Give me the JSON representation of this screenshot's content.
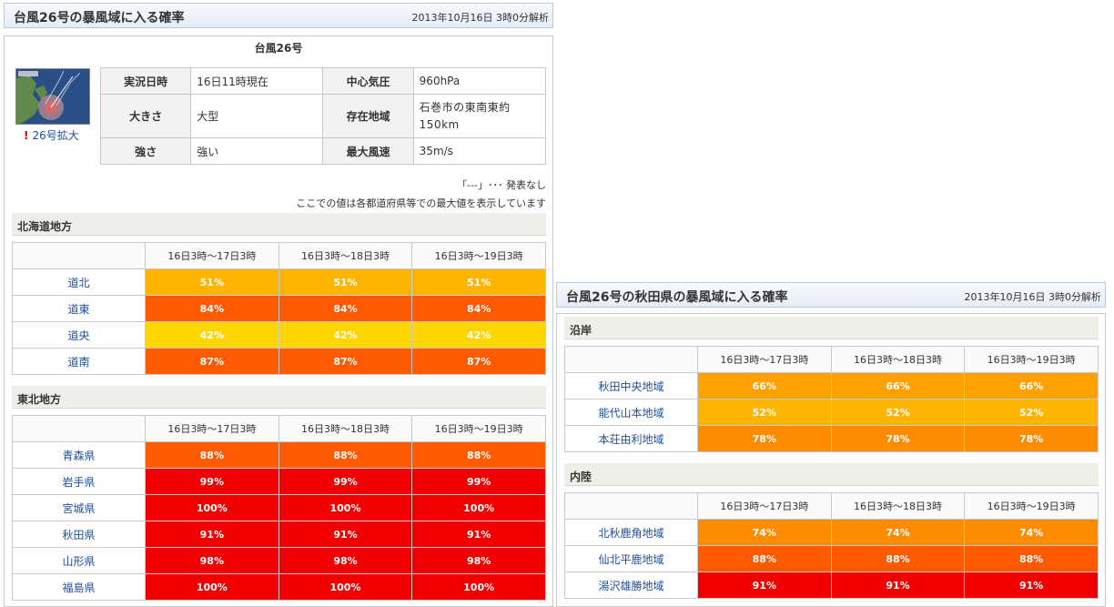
{
  "left_panel": {
    "title": "台風26号の暴風域に入る確率",
    "timestamp": "2013年10月16日 3時0分解析",
    "storm_name": "台風26号",
    "thumbnail_link": "26号拡大",
    "info": {
      "row1": {
        "l1": "実況日時",
        "v1": "16日11時現在",
        "l2": "中心気圧",
        "v2": "960hPa"
      },
      "row2": {
        "l1": "大きさ",
        "v1": "大型",
        "l2": "存在地域",
        "v2": "石巻市の東南東約150km"
      },
      "row3": {
        "l1": "強さ",
        "v1": "強い",
        "l2": "最大風速",
        "v2": "35m/s"
      }
    },
    "note1": "「---」･･･ 発表なし",
    "note2": "ここでの値は各都道府県等での最大値を表示しています",
    "periods": [
      "16日3時～17日3時",
      "16日3時～18日3時",
      "16日3時～19日3時"
    ],
    "hokkaido": {
      "title": "北海道地方",
      "rows": [
        {
          "name": "道北",
          "values": [
            "51%",
            "51%",
            "51%"
          ]
        },
        {
          "name": "道東",
          "values": [
            "84%",
            "84%",
            "84%"
          ]
        },
        {
          "name": "道央",
          "values": [
            "42%",
            "42%",
            "42%"
          ]
        },
        {
          "name": "道南",
          "values": [
            "87%",
            "87%",
            "87%"
          ]
        }
      ]
    },
    "tohoku": {
      "title": "東北地方",
      "rows": [
        {
          "name": "青森県",
          "values": [
            "88%",
            "88%",
            "88%"
          ]
        },
        {
          "name": "岩手県",
          "values": [
            "99%",
            "99%",
            "99%"
          ]
        },
        {
          "name": "宮城県",
          "values": [
            "100%",
            "100%",
            "100%"
          ]
        },
        {
          "name": "秋田県",
          "values": [
            "91%",
            "91%",
            "91%"
          ]
        },
        {
          "name": "山形県",
          "values": [
            "98%",
            "98%",
            "98%"
          ]
        },
        {
          "name": "福島県",
          "values": [
            "100%",
            "100%",
            "100%"
          ]
        }
      ]
    }
  },
  "right_panel": {
    "title": "台風26号の秋田県の暴風域に入る確率",
    "timestamp": "2013年10月16日 3時0分解析",
    "periods": [
      "16日3時～17日3時",
      "16日3時～18日3時",
      "16日3時～19日3時"
    ],
    "coast": {
      "title": "沿岸",
      "rows": [
        {
          "name": "秋田中央地域",
          "values": [
            "66%",
            "66%",
            "66%"
          ]
        },
        {
          "name": "能代山本地域",
          "values": [
            "52%",
            "52%",
            "52%"
          ]
        },
        {
          "name": "本荘由利地域",
          "values": [
            "78%",
            "78%",
            "78%"
          ]
        }
      ]
    },
    "inland": {
      "title": "内陸",
      "rows": [
        {
          "name": "北秋鹿角地域",
          "values": [
            "74%",
            "74%",
            "74%"
          ]
        },
        {
          "name": "仙北平鹿地域",
          "values": [
            "88%",
            "88%",
            "88%"
          ]
        },
        {
          "name": "湯沢雄勝地域",
          "values": [
            "91%",
            "91%",
            "91%"
          ]
        }
      ]
    }
  },
  "colors": {
    "yellow": "#ffd600",
    "amber": "#ffb500",
    "orange": "#ff8c00",
    "dark_orange": "#ff5a00",
    "red": "#f20000"
  }
}
